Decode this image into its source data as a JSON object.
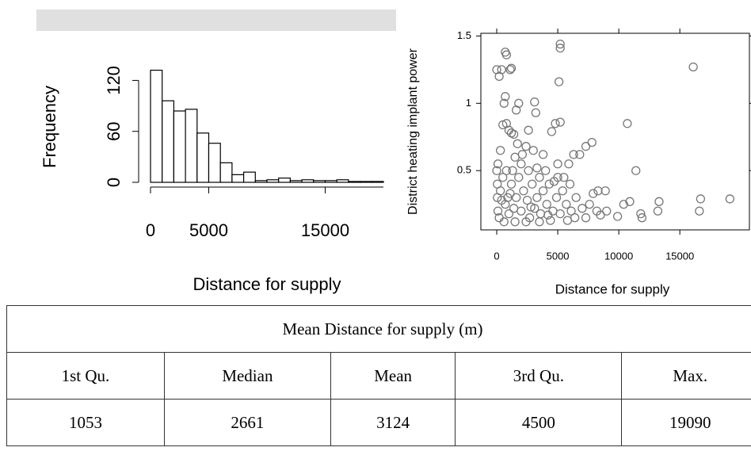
{
  "chart_data": [
    {
      "type": "histogram",
      "xlabel": "Distance for supply",
      "ylabel": "Frequency",
      "bins": [
        0,
        1000,
        2000,
        3000,
        4000,
        5000,
        6000,
        7000,
        8000,
        9000,
        10000,
        11000,
        12000,
        13000,
        14000,
        15000,
        16000,
        17000,
        18000,
        19000,
        20000
      ],
      "values": [
        132,
        96,
        84,
        86,
        58,
        46,
        23,
        9,
        12,
        2,
        3,
        5,
        2,
        3,
        2,
        2,
        3,
        1,
        1,
        1
      ],
      "color": "#ffffff",
      "xlim": [
        0,
        20000
      ],
      "xticks": [
        0,
        5000,
        15000
      ],
      "ylim": [
        0,
        140
      ],
      "yticks": [
        0,
        60,
        120
      ]
    },
    {
      "type": "scatter",
      "xlabel": "Distance for supply",
      "ylabel": "District heating implant power",
      "color": "#777777",
      "xlim": [
        -1300,
        20700
      ],
      "xticks": [
        0,
        5000,
        10000,
        15000
      ],
      "ylim": [
        0.06,
        1.52
      ],
      "yticks": [
        0.5,
        1.0,
        1.5
      ],
      "x": [
        0,
        200,
        400,
        700,
        800,
        1100,
        1200,
        5200,
        5200,
        5100,
        16100,
        700,
        600,
        1800,
        1600,
        3100,
        3200,
        500,
        1000,
        1200,
        1400,
        800,
        4800,
        5200,
        4500,
        10700,
        7800,
        7300,
        6300,
        6800,
        2600,
        2400,
        3000,
        11400,
        5000,
        5900,
        8300,
        7900,
        8900,
        10900,
        11800,
        11900,
        13300,
        13200,
        16700,
        16600,
        19100,
        10400,
        9900,
        9000,
        8200,
        7600,
        7000,
        6500,
        6000,
        5500,
        4000,
        3500,
        2000,
        1500,
        300,
        100,
        50,
        50,
        100,
        200,
        300,
        500,
        700,
        900,
        1000,
        1200,
        1400,
        1600,
        1800,
        2000,
        2200,
        2500,
        2700,
        2900,
        3100,
        3300,
        3600,
        3800,
        4100,
        4300,
        4600,
        4900,
        5200,
        5400,
        5700,
        6100,
        6400,
        800,
        1300,
        2600,
        3300,
        4700,
        600,
        1500,
        2400,
        3500,
        4400,
        5800,
        7300,
        8500,
        2100,
        1700,
        3800,
        0,
        400,
        1100,
        2800,
        4200,
        5000
      ],
      "y": [
        1.25,
        1.2,
        1.25,
        1.38,
        1.36,
        1.25,
        1.26,
        1.44,
        1.41,
        1.16,
        1.27,
        1.05,
        1.0,
        1.0,
        0.95,
        1.01,
        0.93,
        0.84,
        0.8,
        0.78,
        0.77,
        0.85,
        0.85,
        0.86,
        0.79,
        0.85,
        0.71,
        0.68,
        0.62,
        0.62,
        0.8,
        0.68,
        0.65,
        0.5,
        0.55,
        0.55,
        0.35,
        0.33,
        0.35,
        0.27,
        0.18,
        0.15,
        0.27,
        0.2,
        0.29,
        0.2,
        0.29,
        0.25,
        0.16,
        0.2,
        0.2,
        0.25,
        0.22,
        0.3,
        0.4,
        0.45,
        0.5,
        0.45,
        0.55,
        0.6,
        0.65,
        0.55,
        0.4,
        0.3,
        0.2,
        0.15,
        0.35,
        0.45,
        0.25,
        0.3,
        0.18,
        0.4,
        0.22,
        0.3,
        0.45,
        0.2,
        0.35,
        0.28,
        0.15,
        0.4,
        0.22,
        0.3,
        0.18,
        0.35,
        0.25,
        0.4,
        0.2,
        0.3,
        0.18,
        0.35,
        0.25,
        0.2,
        0.15,
        0.5,
        0.5,
        0.5,
        0.52,
        0.42,
        0.12,
        0.12,
        0.12,
        0.12,
        0.13,
        0.13,
        0.15,
        0.17,
        0.62,
        0.7,
        0.62,
        0.5,
        0.28,
        0.33,
        0.23,
        0.17,
        0.45
      ]
    }
  ],
  "table": {
    "title": "Mean Distance for supply (m)",
    "columns": [
      "1st Qu.",
      "Median",
      "Mean",
      "3rd Qu.",
      "Max."
    ],
    "rows": [
      [
        1053,
        2661,
        3124,
        4500,
        19090
      ]
    ]
  }
}
